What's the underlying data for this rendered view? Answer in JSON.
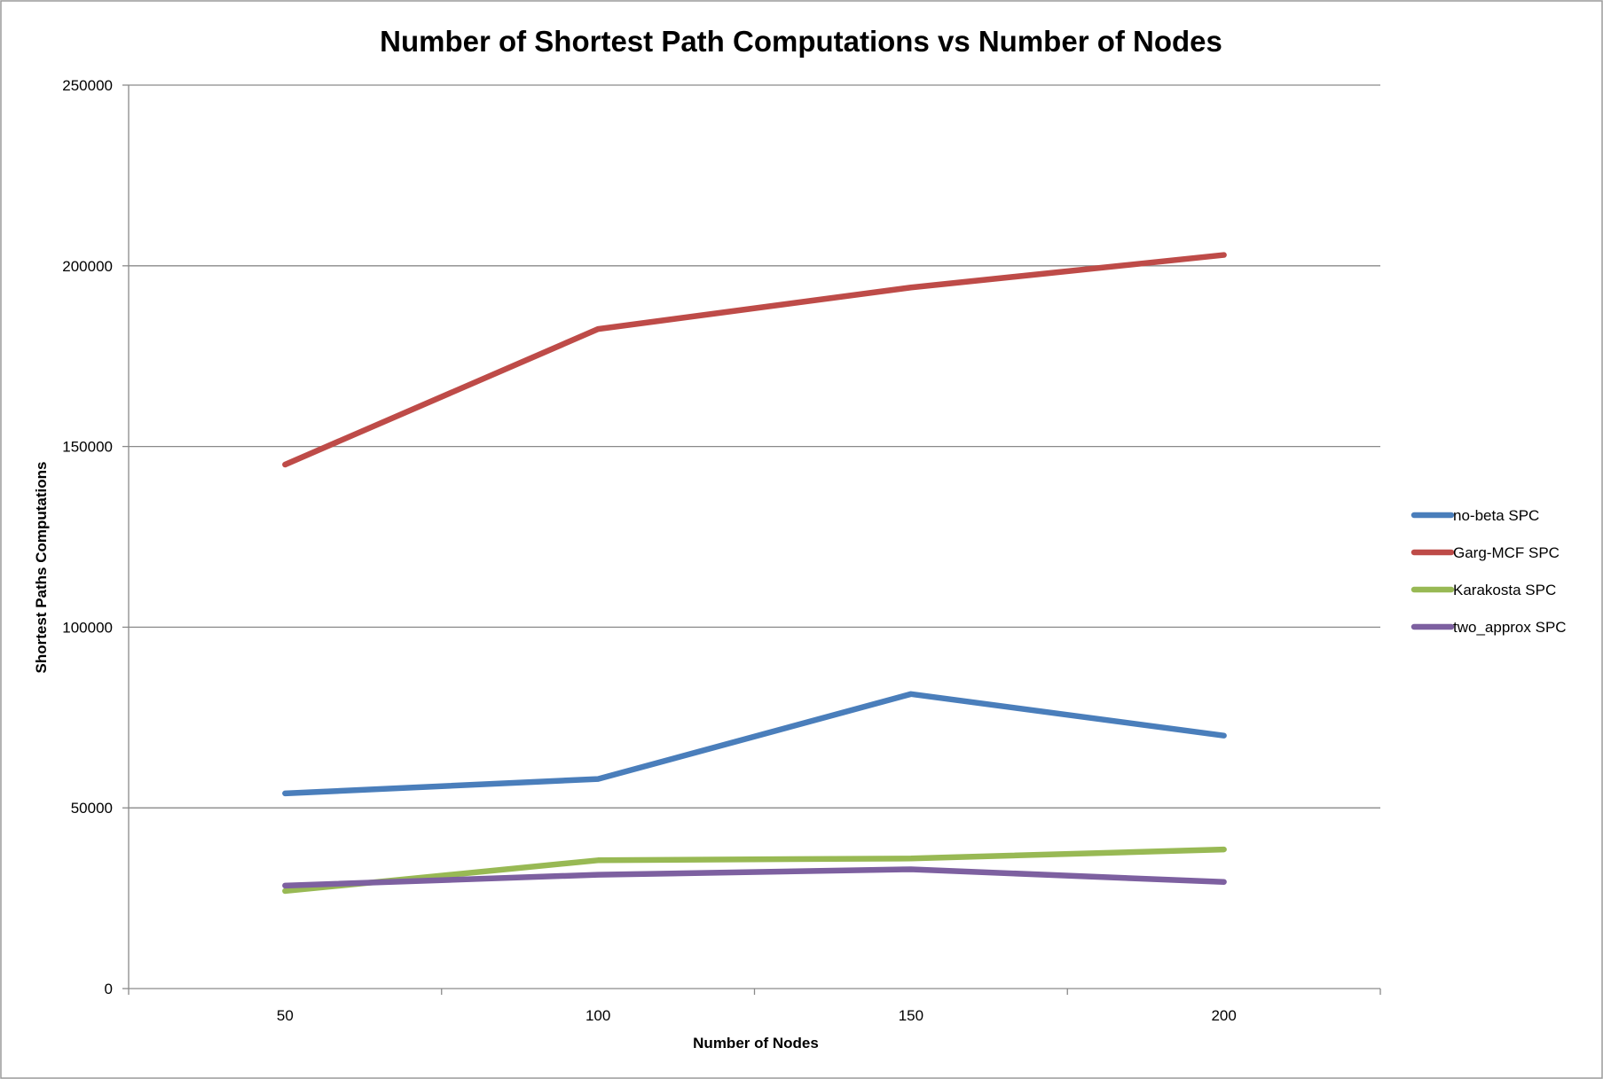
{
  "chart_data": {
    "type": "line",
    "title": "Number of Shortest Path Computations vs Number of Nodes",
    "xlabel": "Number of Nodes",
    "ylabel": "Shortest Paths Computations",
    "x": [
      50,
      100,
      150,
      200
    ],
    "x_tick_labels": [
      "50",
      "100",
      "150",
      "200"
    ],
    "xlim": [
      25,
      225
    ],
    "ylim": [
      0,
      250000
    ],
    "y_ticks": [
      0,
      50000,
      100000,
      150000,
      200000,
      250000
    ],
    "y_tick_labels": [
      "0",
      "50000",
      "100000",
      "150000",
      "200000",
      "250000"
    ],
    "grid": "horizontal",
    "legend_position": "right",
    "series": [
      {
        "name": "no-beta SPC",
        "color": "#4A7EBB",
        "values": [
          54000,
          58000,
          81500,
          70000
        ]
      },
      {
        "name": "Garg-MCF SPC",
        "color": "#BE4B48",
        "values": [
          145000,
          182500,
          194000,
          203000
        ]
      },
      {
        "name": "Karakosta SPC",
        "color": "#98B954",
        "values": [
          27000,
          35500,
          36000,
          38500
        ]
      },
      {
        "name": "two_approx SPC",
        "color": "#7D60A0",
        "values": [
          28500,
          31500,
          33000,
          29500
        ]
      }
    ]
  }
}
